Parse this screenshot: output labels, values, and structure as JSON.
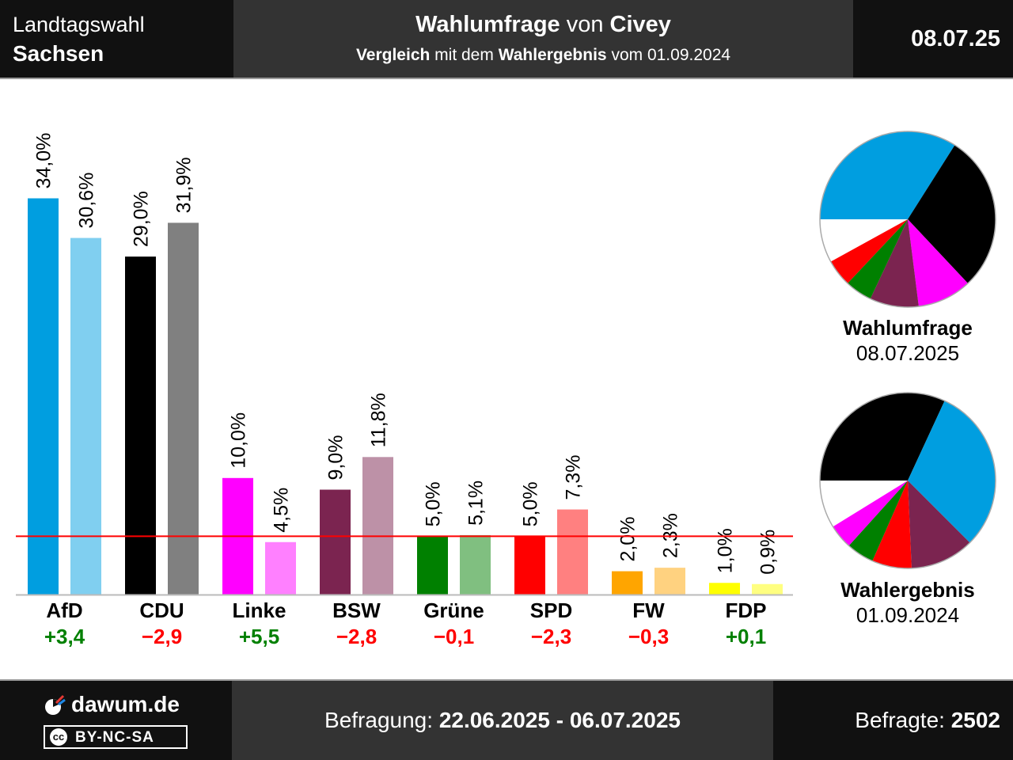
{
  "header": {
    "region_line1": "Landtagswahl",
    "region_line2": "Sachsen",
    "title_bold1": "Wahlumfrage",
    "title_mid": " von ",
    "title_bold2": "Civey",
    "subtitle_bold1": "Vergleich",
    "subtitle_mid": " mit dem ",
    "subtitle_bold2": "Wahlergebnis",
    "subtitle_end": " vom 01.09.2024",
    "date": "08.07.25"
  },
  "chart_data": {
    "type": "bar",
    "categories": [
      "AfD",
      "CDU",
      "Linke",
      "BSW",
      "Grüne",
      "SPD",
      "FW",
      "FDP"
    ],
    "series": [
      {
        "name": "Wahlumfrage",
        "values": [
          34.0,
          29.0,
          10.0,
          9.0,
          5.0,
          5.0,
          2.0,
          1.0
        ]
      },
      {
        "name": "Wahlergebnis",
        "values": [
          30.6,
          31.9,
          4.5,
          11.8,
          5.1,
          7.3,
          2.3,
          0.9
        ]
      }
    ],
    "value_labels_poll": [
      "34,0%",
      "29,0%",
      "10,0%",
      "9,0%",
      "5,0%",
      "5,0%",
      "2,0%",
      "1,0%"
    ],
    "value_labels_result": [
      "30,6%",
      "31,9%",
      "4,5%",
      "11,8%",
      "5,1%",
      "7,3%",
      "2,3%",
      "0,9%"
    ],
    "changes": [
      "+3,4",
      "−2,9",
      "+5,5",
      "−2,8",
      "−0,1",
      "−2,3",
      "−0,3",
      "+0,1"
    ],
    "colors_poll": [
      "#009ee0",
      "#000000",
      "#ff00ff",
      "#7b2450",
      "#008000",
      "#ff0000",
      "#ffa500",
      "#ffff00"
    ],
    "colors_result": [
      "#80cff0",
      "#808080",
      "#ff80ff",
      "#bd91a7",
      "#80bf80",
      "#ff8080",
      "#ffd280",
      "#ffff80"
    ],
    "threshold": 5,
    "ylim": [
      0,
      34
    ],
    "positive_color": "#008000",
    "negative_color": "#ff0000"
  },
  "pies": {
    "poll": {
      "label": "Wahlumfrage",
      "date": "08.07.2025",
      "order": [
        "AfD",
        "CDU",
        "Linke",
        "BSW",
        "Grüne",
        "SPD"
      ],
      "values": [
        34.0,
        29.0,
        10.0,
        9.0,
        5.0,
        5.0
      ],
      "colors": [
        "#009ee0",
        "#000000",
        "#ff00ff",
        "#7b2450",
        "#008000",
        "#ff0000"
      ]
    },
    "result": {
      "label": "Wahlergebnis",
      "date": "01.09.2024",
      "order": [
        "CDU",
        "AfD",
        "BSW",
        "SPD",
        "Grüne",
        "Linke"
      ],
      "values": [
        31.9,
        30.6,
        11.8,
        7.3,
        5.1,
        4.5
      ],
      "colors": [
        "#000000",
        "#009ee0",
        "#7b2450",
        "#ff0000",
        "#008000",
        "#ff00ff"
      ]
    }
  },
  "footer": {
    "brand": "dawum.de",
    "license": "BY-NC-SA",
    "cc": "cc",
    "survey_label": "Befragung: ",
    "survey_period": "22.06.2025 - 06.07.2025",
    "respondents_label": "Befragte: ",
    "respondents": "2502"
  }
}
